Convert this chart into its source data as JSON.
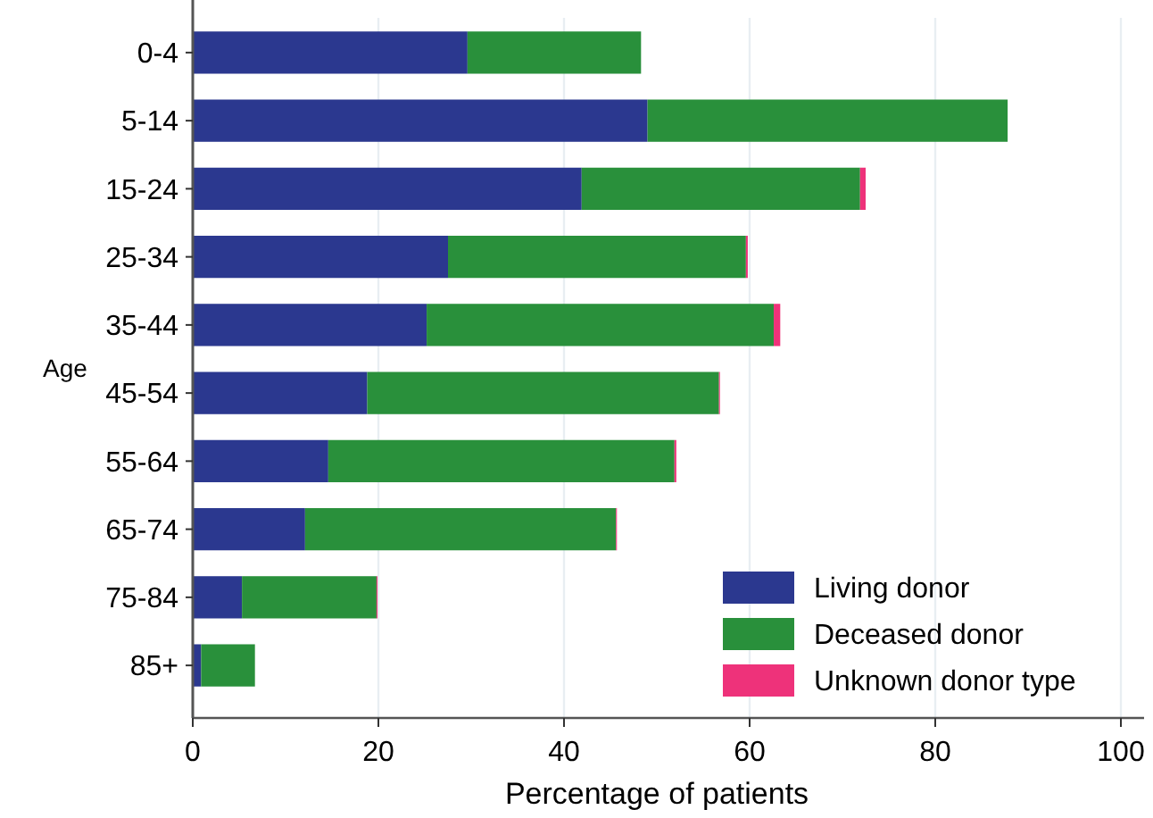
{
  "chart_data": {
    "type": "bar",
    "orientation": "horizontal",
    "stacked": true,
    "xlabel": "Percentage of patients",
    "ylabel": "Age",
    "categories": [
      "0-4",
      "5-14",
      "15-24",
      "25-34",
      "35-44",
      "45-54",
      "55-64",
      "65-74",
      "75-84",
      "85+"
    ],
    "series": [
      {
        "name": "Living donor",
        "color": "#2b388f",
        "values": [
          29.6,
          49.0,
          41.9,
          27.5,
          25.2,
          18.8,
          14.6,
          12.1,
          5.3,
          0.9
        ]
      },
      {
        "name": "Deceased donor",
        "color": "#29903b",
        "values": [
          18.7,
          38.8,
          30.0,
          32.1,
          37.4,
          37.9,
          37.3,
          33.5,
          14.5,
          5.8
        ]
      },
      {
        "name": "Unknown donor type",
        "color": "#ee327a",
        "values": [
          0,
          0,
          0.6,
          0.2,
          0.7,
          0.1,
          0.2,
          0.1,
          0.1,
          0
        ]
      }
    ],
    "xlim": [
      0,
      100
    ],
    "xticks": [
      0,
      20,
      40,
      60,
      80,
      100
    ],
    "grid": "x",
    "legend": "bottom right"
  }
}
